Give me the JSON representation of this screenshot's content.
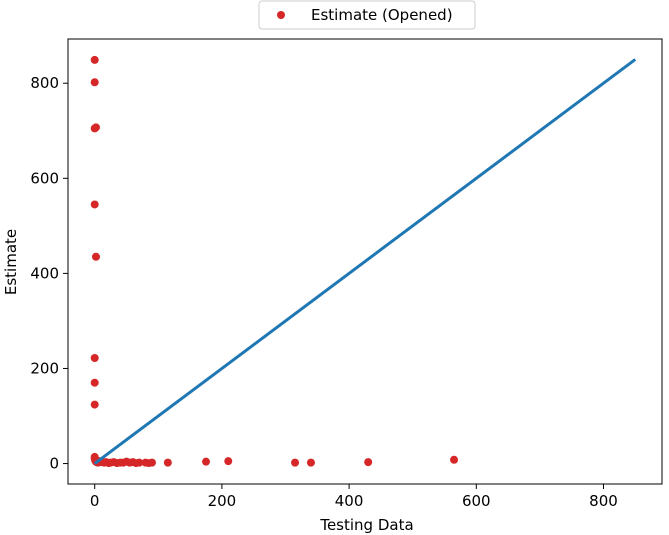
{
  "chart_data": {
    "type": "scatter",
    "xlabel": "Testing Data",
    "ylabel": "Estimate",
    "xlim": [
      -42,
      892
    ],
    "ylim": [
      -43,
      893
    ],
    "xticks": [
      0,
      200,
      400,
      600,
      800
    ],
    "yticks": [
      0,
      200,
      400,
      600,
      800
    ],
    "grid": false,
    "legend_position": "top-center",
    "point_color": "#d62728",
    "line_color": "#1f77b4",
    "series": [
      {
        "name": "Estimate (Opened)",
        "kind": "scatter",
        "x": [
          0,
          0,
          0,
          2,
          0,
          2,
          0,
          0,
          0,
          0,
          0,
          1,
          2,
          3,
          5,
          7,
          10,
          12,
          15,
          18,
          22,
          25,
          30,
          35,
          40,
          45,
          50,
          55,
          60,
          65,
          70,
          80,
          85,
          90,
          115,
          175,
          210,
          315,
          340,
          430,
          565
        ],
        "y": [
          849,
          802,
          705,
          707,
          545,
          435,
          222,
          170,
          124,
          14,
          10,
          6,
          4,
          3,
          2,
          5,
          3,
          4,
          2,
          3,
          1,
          2,
          3,
          1,
          2,
          2,
          4,
          2,
          3,
          1,
          2,
          2,
          1,
          2,
          2,
          4,
          5,
          2,
          2,
          3,
          8
        ]
      },
      {
        "name": "",
        "kind": "line",
        "x": [
          0,
          850
        ],
        "y": [
          0,
          850
        ]
      }
    ]
  }
}
